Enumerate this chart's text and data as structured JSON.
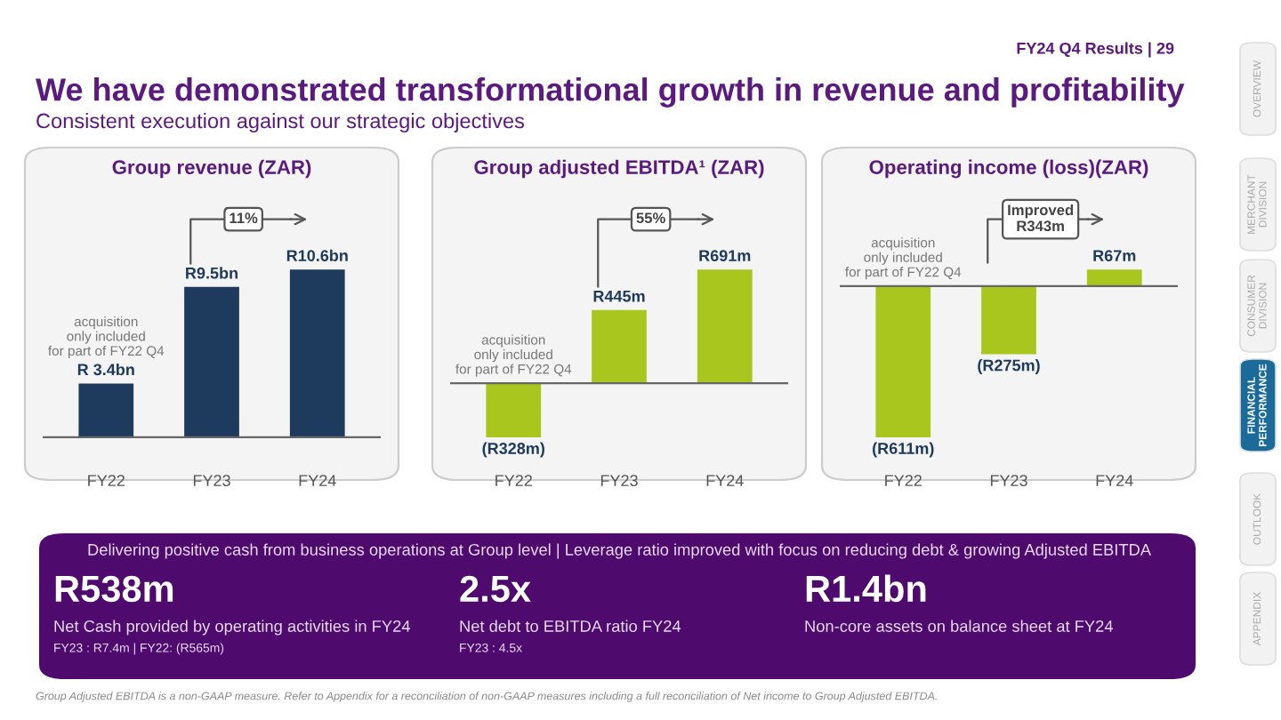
{
  "chart_data": [
    {
      "type": "other",
      "title": "We have demonstrated transformational growth in revenue and profitability",
      "subtitle": "Consistent execution against our strategic objectives",
      "annotations": [
        "FY24 Q4 Results | 29",
        "Delivering positive cash from business operations at Group level | Leverage ratio improved with focus on reducing debt & growing Adjusted EBITDA",
        "R538m",
        "Net Cash provided by operating activities in FY24",
        "FY23 : R7.4m | FY22: (R565m)",
        "2.5x",
        "Net debt to EBITDA ratio FY24",
        "FY23 : 4.5x",
        "R1.4bn",
        "Non-core assets on balance sheet at FY24",
        "Group Adjusted EBITDA is a non-GAAP measure. Refer to Appendix for a reconciliation of non-GAAP measures including a full reconciliation of Net income to Group Adjusted EBITDA.",
        "OVERVIEW",
        "MERCHANT\nDIVISION",
        "CONSUMER\nDIVISION",
        "FINANCIAL\nPERFORMANCE",
        "OUTLOOK",
        "APPENDIX"
      ]
    },
    {
      "type": "bar",
      "title": "Group revenue (ZAR)",
      "categories": [
        "FY22",
        "FY23",
        "FY24"
      ],
      "values": [
        3400000000,
        9500000000,
        10600000000
      ],
      "value_labels": [
        "R 3.4bn",
        "R9.5bn",
        "R10.6bn"
      ],
      "color": "#1e3a5c",
      "annotations": [
        "acquisition\nonly included\nfor part of FY22 Q4",
        "11%"
      ]
    },
    {
      "type": "bar",
      "title": "Group adjusted EBITDA¹ (ZAR)",
      "categories": [
        "FY22",
        "FY23",
        "FY24"
      ],
      "values": [
        -328000000,
        445000000,
        691000000
      ],
      "value_labels": [
        "(R328m)",
        "R445m",
        "R691m"
      ],
      "color": "#a9c61f",
      "annotations": [
        "acquisition\nonly included\nfor part of FY22 Q4",
        "55%"
      ]
    },
    {
      "type": "bar",
      "title": "Operating income (loss)(ZAR)",
      "categories": [
        "FY22",
        "FY23",
        "FY24"
      ],
      "values": [
        -611000000,
        -275000000,
        67000000
      ],
      "value_labels": [
        "(R611m)",
        "(R275m)",
        "R67m"
      ],
      "color": "#a9c61f",
      "annotations": [
        "acquisition\nonly included\nfor part of FY22 Q4",
        "Improved\nR343m"
      ]
    }
  ]
}
